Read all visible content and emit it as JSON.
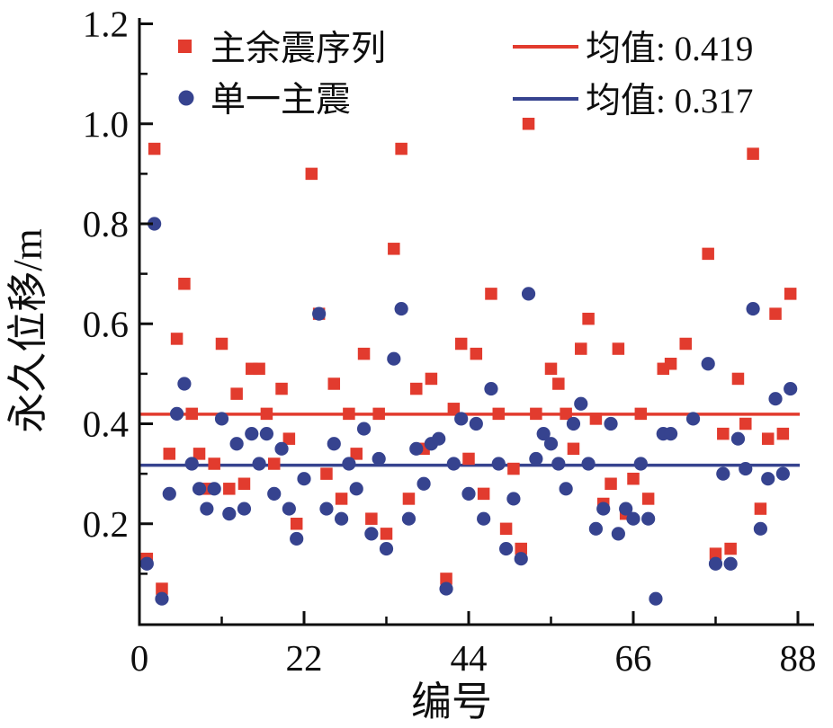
{
  "chart_data": {
    "type": "scatter",
    "title": "",
    "xlabel": "编号",
    "ylabel": "永久位移/m",
    "xlim": [
      0,
      88
    ],
    "ylim": [
      0,
      1.2
    ],
    "x_ticks": [
      0,
      22,
      44,
      66,
      88
    ],
    "x_tick_labels": [
      "0",
      "22",
      "44",
      "66",
      "88"
    ],
    "x_minor_ticks": [
      11,
      33,
      55,
      77
    ],
    "y_ticks": [
      0.2,
      0.4,
      0.6,
      0.8,
      1.0,
      1.2
    ],
    "y_tick_labels": [
      "0.2",
      "0.4",
      "0.6",
      "0.8",
      "1.0",
      "1.2"
    ],
    "y_minor_ticks": [
      0.1,
      0.3,
      0.5,
      0.7,
      0.9,
      1.1
    ],
    "grid": false,
    "legend_position": "top-inside",
    "axis_color": "#0e0e0e",
    "series": [
      {
        "name": "主余震序列",
        "marker": "square",
        "color": "#e23b2e",
        "mean": 0.419,
        "points": [
          [
            1,
            0.13
          ],
          [
            2,
            0.95
          ],
          [
            3,
            0.07
          ],
          [
            4,
            0.34
          ],
          [
            5,
            0.57
          ],
          [
            6,
            0.68
          ],
          [
            7,
            0.42
          ],
          [
            8,
            0.34
          ],
          [
            9,
            0.27
          ],
          [
            10,
            0.32
          ],
          [
            11,
            0.56
          ],
          [
            12,
            0.27
          ],
          [
            13,
            0.46
          ],
          [
            14,
            0.28
          ],
          [
            15,
            0.51
          ],
          [
            16,
            0.51
          ],
          [
            17,
            0.42
          ],
          [
            18,
            0.32
          ],
          [
            19,
            0.47
          ],
          [
            20,
            0.37
          ],
          [
            21,
            0.2
          ],
          [
            23,
            0.9
          ],
          [
            24,
            0.62
          ],
          [
            25,
            0.3
          ],
          [
            26,
            0.48
          ],
          [
            27,
            0.25
          ],
          [
            28,
            0.42
          ],
          [
            29,
            0.34
          ],
          [
            30,
            0.54
          ],
          [
            31,
            0.21
          ],
          [
            32,
            0.42
          ],
          [
            33,
            0.18
          ],
          [
            34,
            0.75
          ],
          [
            35,
            0.95
          ],
          [
            36,
            0.25
          ],
          [
            37,
            0.47
          ],
          [
            38,
            0.35
          ],
          [
            39,
            0.49
          ],
          [
            41,
            0.09
          ],
          [
            42,
            0.43
          ],
          [
            43,
            0.56
          ],
          [
            44,
            0.33
          ],
          [
            45,
            0.54
          ],
          [
            46,
            0.26
          ],
          [
            47,
            0.66
          ],
          [
            48,
            0.42
          ],
          [
            49,
            0.19
          ],
          [
            50,
            0.31
          ],
          [
            51,
            0.15
          ],
          [
            52,
            1.0
          ],
          [
            53,
            0.42
          ],
          [
            55,
            0.51
          ],
          [
            56,
            0.48
          ],
          [
            57,
            0.42
          ],
          [
            58,
            0.35
          ],
          [
            59,
            0.55
          ],
          [
            60,
            0.61
          ],
          [
            61,
            0.41
          ],
          [
            62,
            0.24
          ],
          [
            63,
            0.28
          ],
          [
            64,
            0.55
          ],
          [
            65,
            0.22
          ],
          [
            66,
            0.29
          ],
          [
            67,
            0.42
          ],
          [
            68,
            0.25
          ],
          [
            70,
            0.51
          ],
          [
            71,
            0.52
          ],
          [
            73,
            0.56
          ],
          [
            76,
            0.74
          ],
          [
            77,
            0.14
          ],
          [
            78,
            0.38
          ],
          [
            79,
            0.15
          ],
          [
            80,
            0.49
          ],
          [
            81,
            0.4
          ],
          [
            82,
            0.94
          ],
          [
            83,
            0.23
          ],
          [
            84,
            0.37
          ],
          [
            85,
            0.62
          ],
          [
            86,
            0.38
          ],
          [
            87,
            0.66
          ]
        ]
      },
      {
        "name": "单一主震",
        "marker": "circle",
        "color": "#36438f",
        "mean": 0.317,
        "points": [
          [
            1,
            0.12
          ],
          [
            2,
            0.8
          ],
          [
            3,
            0.05
          ],
          [
            4,
            0.26
          ],
          [
            5,
            0.42
          ],
          [
            6,
            0.48
          ],
          [
            7,
            0.32
          ],
          [
            8,
            0.27
          ],
          [
            9,
            0.23
          ],
          [
            10,
            0.27
          ],
          [
            11,
            0.41
          ],
          [
            12,
            0.22
          ],
          [
            13,
            0.36
          ],
          [
            14,
            0.23
          ],
          [
            15,
            0.38
          ],
          [
            16,
            0.32
          ],
          [
            17,
            0.38
          ],
          [
            18,
            0.26
          ],
          [
            19,
            0.35
          ],
          [
            20,
            0.23
          ],
          [
            21,
            0.17
          ],
          [
            22,
            0.29
          ],
          [
            24,
            0.62
          ],
          [
            25,
            0.23
          ],
          [
            26,
            0.36
          ],
          [
            27,
            0.21
          ],
          [
            28,
            0.32
          ],
          [
            29,
            0.27
          ],
          [
            30,
            0.39
          ],
          [
            31,
            0.18
          ],
          [
            32,
            0.33
          ],
          [
            33,
            0.15
          ],
          [
            34,
            0.53
          ],
          [
            35,
            0.63
          ],
          [
            36,
            0.21
          ],
          [
            37,
            0.35
          ],
          [
            38,
            0.28
          ],
          [
            39,
            0.36
          ],
          [
            40,
            0.37
          ],
          [
            41,
            0.07
          ],
          [
            42,
            0.32
          ],
          [
            43,
            0.41
          ],
          [
            44,
            0.26
          ],
          [
            45,
            0.4
          ],
          [
            46,
            0.21
          ],
          [
            47,
            0.47
          ],
          [
            48,
            0.32
          ],
          [
            49,
            0.15
          ],
          [
            50,
            0.25
          ],
          [
            51,
            0.13
          ],
          [
            52,
            0.66
          ],
          [
            53,
            0.33
          ],
          [
            54,
            0.38
          ],
          [
            55,
            0.36
          ],
          [
            56,
            0.32
          ],
          [
            57,
            0.27
          ],
          [
            58,
            0.4
          ],
          [
            59,
            0.44
          ],
          [
            60,
            0.32
          ],
          [
            61,
            0.19
          ],
          [
            62,
            0.23
          ],
          [
            63,
            0.4
          ],
          [
            64,
            0.18
          ],
          [
            65,
            0.23
          ],
          [
            66,
            0.21
          ],
          [
            67,
            0.32
          ],
          [
            68,
            0.21
          ],
          [
            69,
            0.05
          ],
          [
            70,
            0.38
          ],
          [
            71,
            0.38
          ],
          [
            74,
            0.41
          ],
          [
            76,
            0.52
          ],
          [
            77,
            0.12
          ],
          [
            78,
            0.3
          ],
          [
            79,
            0.12
          ],
          [
            80,
            0.37
          ],
          [
            81,
            0.31
          ],
          [
            82,
            0.63
          ],
          [
            83,
            0.19
          ],
          [
            84,
            0.29
          ],
          [
            85,
            0.45
          ],
          [
            86,
            0.3
          ],
          [
            87,
            0.47
          ]
        ]
      }
    ],
    "mean_lines": [
      {
        "label": "均值: 0.419",
        "value": 0.419,
        "color": "#e23b2e"
      },
      {
        "label": "均值: 0.317",
        "value": 0.317,
        "color": "#36438f"
      }
    ]
  }
}
